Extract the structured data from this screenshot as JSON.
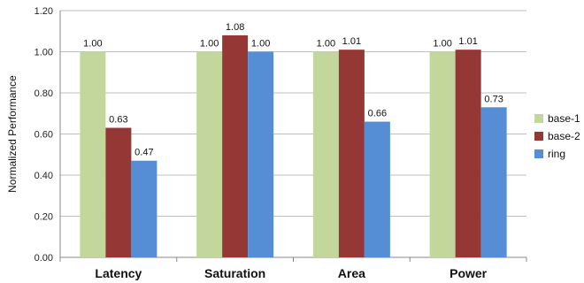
{
  "chart_data": {
    "type": "bar",
    "title": "",
    "xlabel": "",
    "ylabel": "Normalized Performance",
    "categories": [
      "Latency",
      "Saturation",
      "Area",
      "Power"
    ],
    "ylim": [
      0,
      1.2
    ],
    "yticks": [
      "0.00",
      "0.20",
      "0.40",
      "0.60",
      "0.80",
      "1.00",
      "1.20"
    ],
    "grid": true,
    "legend_position": "right",
    "series": [
      {
        "name": "base-1",
        "color": "#c3d69b",
        "values": [
          1.0,
          1.0,
          1.0,
          1.0
        ],
        "labels": [
          "1.00",
          "1.00",
          "1.00",
          "1.00"
        ]
      },
      {
        "name": "base-2",
        "color": "#953735",
        "values": [
          0.63,
          1.08,
          1.01,
          1.01
        ],
        "labels": [
          "0.63",
          "1.08",
          "1.01",
          "1.01"
        ]
      },
      {
        "name": "ring",
        "color": "#558ed5",
        "values": [
          0.47,
          1.0,
          0.66,
          0.73
        ],
        "labels": [
          "0.47",
          "1.00",
          "0.66",
          "0.73"
        ]
      }
    ]
  }
}
